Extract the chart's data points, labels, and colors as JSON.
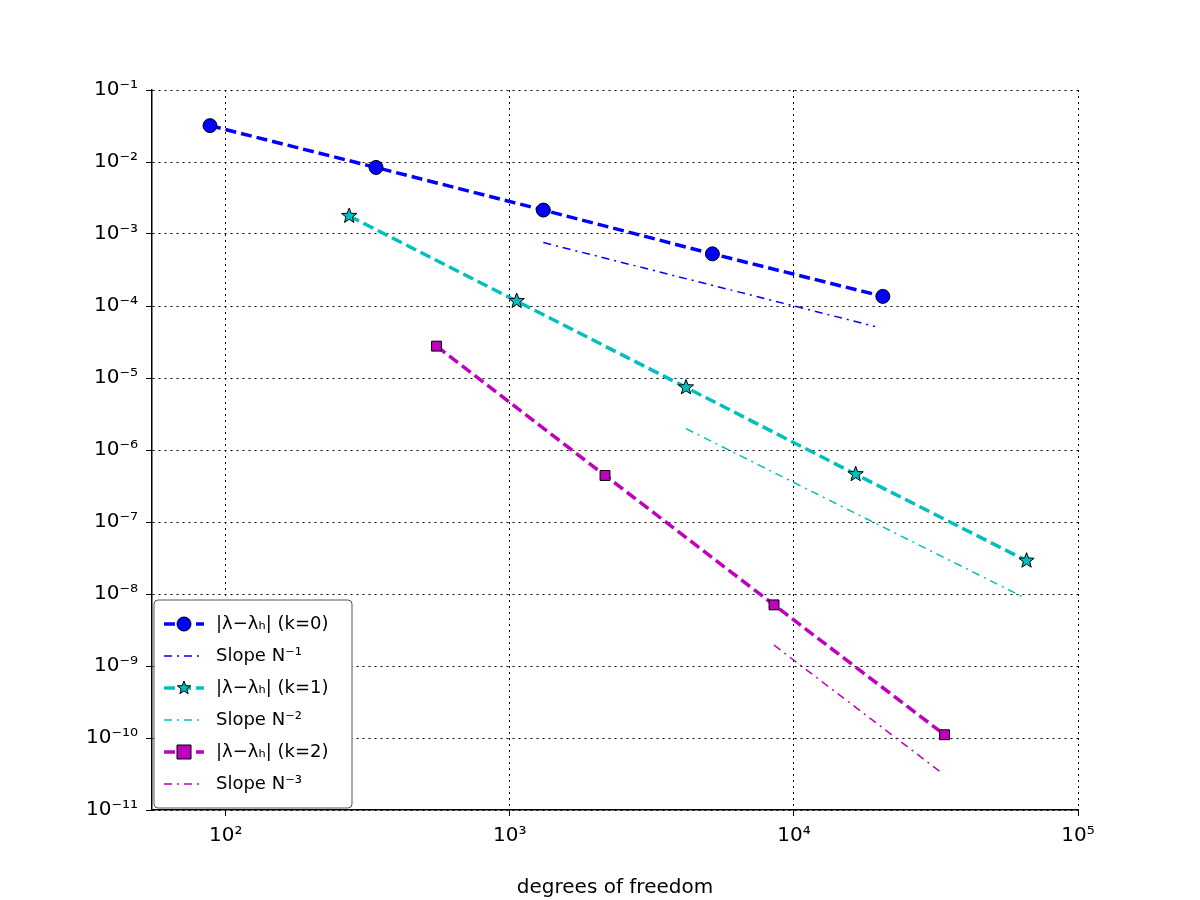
{
  "chart_data": {
    "type": "line",
    "xlabel": "degrees of freedom",
    "log": "xy",
    "grid": true,
    "legend": "bottom left",
    "xlim": [
      55,
      100000
    ],
    "ylim": [
      1e-11,
      0.1
    ],
    "xticks": [
      {
        "value": 100,
        "label": "10²"
      },
      {
        "value": 1000,
        "label": "10³"
      },
      {
        "value": 10000,
        "label": "10⁴"
      },
      {
        "value": 100000,
        "label": "10⁵"
      }
    ],
    "yticks": [
      {
        "value": 1e-11,
        "label": "10⁻¹¹"
      },
      {
        "value": 1e-10,
        "label": "10⁻¹⁰"
      },
      {
        "value": 1e-09,
        "label": "10⁻⁹"
      },
      {
        "value": 1e-08,
        "label": "10⁻⁸"
      },
      {
        "value": 1e-07,
        "label": "10⁻⁷"
      },
      {
        "value": 1e-06,
        "label": "10⁻⁶"
      },
      {
        "value": 1e-05,
        "label": "10⁻⁵"
      },
      {
        "value": 0.0001,
        "label": "10⁻⁴"
      },
      {
        "value": 0.001,
        "label": "10⁻³"
      },
      {
        "value": 0.01,
        "label": "10⁻²"
      },
      {
        "value": 0.1,
        "label": "10⁻¹"
      }
    ],
    "series": [
      {
        "name": "|λ−λₕ| (k=0)",
        "color": "#0000ff",
        "marker": "circle",
        "line_style": "dashed",
        "x": [
          88,
          338,
          1312,
          5165,
          20560
        ],
        "values": [
          0.032,
          0.0084,
          0.00215,
          0.00053,
          0.000136
        ]
      },
      {
        "name": "Slope N⁻¹",
        "color": "#0000ff",
        "marker": "none",
        "line_style": "dashdot",
        "x": [
          1312,
          19300
        ],
        "values": [
          0.00076,
          5.2e-05
        ]
      },
      {
        "name": "|λ−λₕ| (k=1)",
        "color": "#00bfbf",
        "marker": "star",
        "line_style": "dashed",
        "x": [
          272,
          1057,
          4170,
          16500,
          65900
        ],
        "values": [
          0.00178,
          0.000117,
          7.4e-06,
          4.6e-07,
          2.9e-08
        ]
      },
      {
        "name": "Slope N⁻²",
        "color": "#00bfbf",
        "marker": "none",
        "line_style": "dashdot",
        "x": [
          4170,
          64000
        ],
        "values": [
          1.98e-06,
          9.1e-09
        ]
      },
      {
        "name": "|λ−λₕ| (k=2)",
        "color": "#bf00bf",
        "marker": "square",
        "line_style": "dashed",
        "x": [
          552,
          2163,
          8510,
          33900
        ],
        "values": [
          2.77e-05,
          4.43e-07,
          7.06e-09,
          1.11e-10
        ]
      },
      {
        "name": "Slope N⁻³",
        "color": "#bf00bf",
        "marker": "none",
        "line_style": "dashdot",
        "x": [
          8510,
          33400
        ],
        "values": [
          1.95e-09,
          3.2e-11
        ]
      }
    ]
  }
}
